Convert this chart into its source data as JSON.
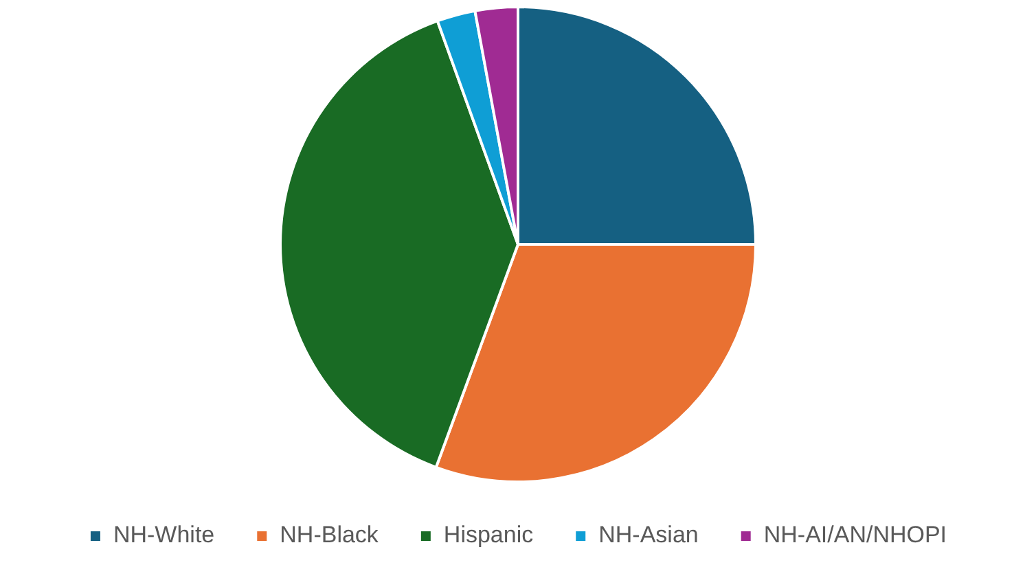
{
  "chart_data": {
    "type": "pie",
    "categories": [
      "NH-White",
      "NH-Black",
      "Hispanic",
      "NH-Asian",
      "NH-AI/AN/NHOPI"
    ],
    "values": [
      25,
      30.6,
      38.9,
      2.6,
      2.9
    ],
    "colors": [
      "#156082",
      "#e97132",
      "#196b24",
      "#0f9ed5",
      "#a02b93"
    ],
    "legend": "bottom"
  }
}
